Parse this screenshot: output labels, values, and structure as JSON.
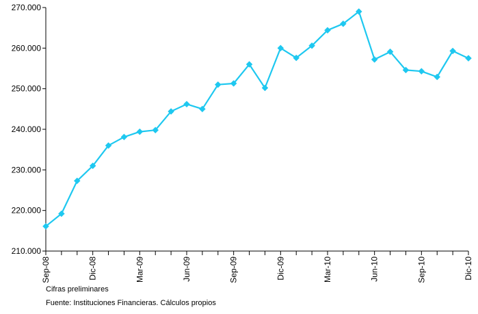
{
  "chart_data": {
    "type": "line",
    "title": "",
    "xlabel": "",
    "ylabel": "",
    "x": [
      "Sep-08",
      "Oct-08",
      "Nov-08",
      "Dic-08",
      "Ene-09",
      "Feb-09",
      "Mar-09",
      "Abr-09",
      "May-09",
      "Jun-09",
      "Jul-09",
      "Ago-09",
      "Sep-09",
      "Oct-09",
      "Nov-09",
      "Dic-09",
      "Ene-10",
      "Feb-10",
      "Mar-10",
      "Abr-10",
      "May-10",
      "Jun-10",
      "Jul-10",
      "Ago-10",
      "Sep-10",
      "Oct-10",
      "Nov-10",
      "Dic-10"
    ],
    "tick_labels": [
      "Sep-08",
      "Dic-08",
      "Mar-09",
      "Jun-09",
      "Sep-09",
      "Dic-09",
      "Mar-10",
      "Jun-10",
      "Sep-10",
      "Dic-10"
    ],
    "series": [
      {
        "values": [
          216100,
          219200,
          227300,
          231000,
          236000,
          238100,
          239400,
          239800,
          244400,
          246200,
          245000,
          251000,
          251300,
          256000,
          250200,
          260000,
          257600,
          260600,
          264400,
          266000,
          269000,
          257200,
          259100,
          254600,
          254300,
          252900,
          259300,
          257500
        ],
        "color": "#1ec8f0"
      }
    ],
    "ylim": [
      210000,
      270000
    ],
    "yticks": [
      "210.000",
      "220.000",
      "230.000",
      "240.000",
      "250.000",
      "260.000",
      "270.000"
    ],
    "ytick_values": [
      210000,
      220000,
      230000,
      240000,
      250000,
      260000,
      270000
    ],
    "grid": false,
    "legend": "none"
  },
  "notes": {
    "preliminary": "Cifras preliminares",
    "source": "Fuente: Instituciones Financieras. Cálculos propios"
  }
}
